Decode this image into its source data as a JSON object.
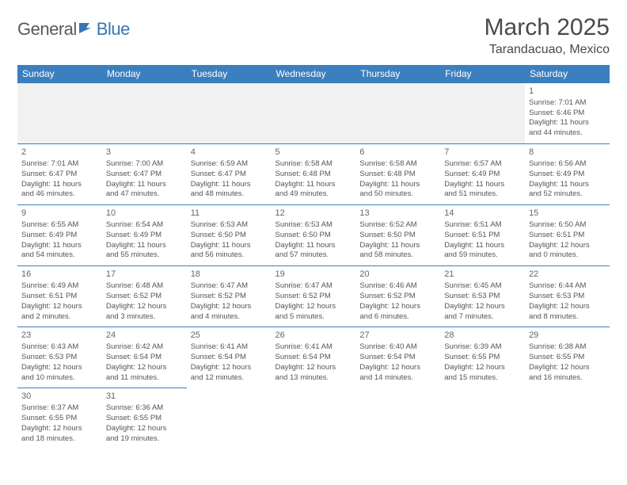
{
  "brand": {
    "part1": "General",
    "part2": "Blue"
  },
  "title": "March 2025",
  "location": "Tarandacuao, Mexico",
  "colors": {
    "header_bg": "#3b7fbf",
    "header_text": "#ffffff",
    "border": "#3b7fbf",
    "empty_bg": "#f1f1f1",
    "text": "#555555",
    "title_text": "#4a4a4a",
    "logo_gray": "#5a5a5a",
    "logo_blue": "#3676b5"
  },
  "weekdays": [
    "Sunday",
    "Monday",
    "Tuesday",
    "Wednesday",
    "Thursday",
    "Friday",
    "Saturday"
  ],
  "weeks": [
    [
      null,
      null,
      null,
      null,
      null,
      null,
      {
        "d": "1",
        "sr": "7:01 AM",
        "ss": "6:46 PM",
        "dl1": "11 hours",
        "dl2": "and 44 minutes."
      }
    ],
    [
      {
        "d": "2",
        "sr": "7:01 AM",
        "ss": "6:47 PM",
        "dl1": "11 hours",
        "dl2": "and 46 minutes."
      },
      {
        "d": "3",
        "sr": "7:00 AM",
        "ss": "6:47 PM",
        "dl1": "11 hours",
        "dl2": "and 47 minutes."
      },
      {
        "d": "4",
        "sr": "6:59 AM",
        "ss": "6:47 PM",
        "dl1": "11 hours",
        "dl2": "and 48 minutes."
      },
      {
        "d": "5",
        "sr": "6:58 AM",
        "ss": "6:48 PM",
        "dl1": "11 hours",
        "dl2": "and 49 minutes."
      },
      {
        "d": "6",
        "sr": "6:58 AM",
        "ss": "6:48 PM",
        "dl1": "11 hours",
        "dl2": "and 50 minutes."
      },
      {
        "d": "7",
        "sr": "6:57 AM",
        "ss": "6:49 PM",
        "dl1": "11 hours",
        "dl2": "and 51 minutes."
      },
      {
        "d": "8",
        "sr": "6:56 AM",
        "ss": "6:49 PM",
        "dl1": "11 hours",
        "dl2": "and 52 minutes."
      }
    ],
    [
      {
        "d": "9",
        "sr": "6:55 AM",
        "ss": "6:49 PM",
        "dl1": "11 hours",
        "dl2": "and 54 minutes."
      },
      {
        "d": "10",
        "sr": "6:54 AM",
        "ss": "6:49 PM",
        "dl1": "11 hours",
        "dl2": "and 55 minutes."
      },
      {
        "d": "11",
        "sr": "6:53 AM",
        "ss": "6:50 PM",
        "dl1": "11 hours",
        "dl2": "and 56 minutes."
      },
      {
        "d": "12",
        "sr": "6:53 AM",
        "ss": "6:50 PM",
        "dl1": "11 hours",
        "dl2": "and 57 minutes."
      },
      {
        "d": "13",
        "sr": "6:52 AM",
        "ss": "6:50 PM",
        "dl1": "11 hours",
        "dl2": "and 58 minutes."
      },
      {
        "d": "14",
        "sr": "6:51 AM",
        "ss": "6:51 PM",
        "dl1": "11 hours",
        "dl2": "and 59 minutes."
      },
      {
        "d": "15",
        "sr": "6:50 AM",
        "ss": "6:51 PM",
        "dl1": "12 hours",
        "dl2": "and 0 minutes."
      }
    ],
    [
      {
        "d": "16",
        "sr": "6:49 AM",
        "ss": "6:51 PM",
        "dl1": "12 hours",
        "dl2": "and 2 minutes."
      },
      {
        "d": "17",
        "sr": "6:48 AM",
        "ss": "6:52 PM",
        "dl1": "12 hours",
        "dl2": "and 3 minutes."
      },
      {
        "d": "18",
        "sr": "6:47 AM",
        "ss": "6:52 PM",
        "dl1": "12 hours",
        "dl2": "and 4 minutes."
      },
      {
        "d": "19",
        "sr": "6:47 AM",
        "ss": "6:52 PM",
        "dl1": "12 hours",
        "dl2": "and 5 minutes."
      },
      {
        "d": "20",
        "sr": "6:46 AM",
        "ss": "6:52 PM",
        "dl1": "12 hours",
        "dl2": "and 6 minutes."
      },
      {
        "d": "21",
        "sr": "6:45 AM",
        "ss": "6:53 PM",
        "dl1": "12 hours",
        "dl2": "and 7 minutes."
      },
      {
        "d": "22",
        "sr": "6:44 AM",
        "ss": "6:53 PM",
        "dl1": "12 hours",
        "dl2": "and 8 minutes."
      }
    ],
    [
      {
        "d": "23",
        "sr": "6:43 AM",
        "ss": "6:53 PM",
        "dl1": "12 hours",
        "dl2": "and 10 minutes."
      },
      {
        "d": "24",
        "sr": "6:42 AM",
        "ss": "6:54 PM",
        "dl1": "12 hours",
        "dl2": "and 11 minutes."
      },
      {
        "d": "25",
        "sr": "6:41 AM",
        "ss": "6:54 PM",
        "dl1": "12 hours",
        "dl2": "and 12 minutes."
      },
      {
        "d": "26",
        "sr": "6:41 AM",
        "ss": "6:54 PM",
        "dl1": "12 hours",
        "dl2": "and 13 minutes."
      },
      {
        "d": "27",
        "sr": "6:40 AM",
        "ss": "6:54 PM",
        "dl1": "12 hours",
        "dl2": "and 14 minutes."
      },
      {
        "d": "28",
        "sr": "6:39 AM",
        "ss": "6:55 PM",
        "dl1": "12 hours",
        "dl2": "and 15 minutes."
      },
      {
        "d": "29",
        "sr": "6:38 AM",
        "ss": "6:55 PM",
        "dl1": "12 hours",
        "dl2": "and 16 minutes."
      }
    ],
    [
      {
        "d": "30",
        "sr": "6:37 AM",
        "ss": "6:55 PM",
        "dl1": "12 hours",
        "dl2": "and 18 minutes."
      },
      {
        "d": "31",
        "sr": "6:36 AM",
        "ss": "6:55 PM",
        "dl1": "12 hours",
        "dl2": "and 19 minutes."
      },
      null,
      null,
      null,
      null,
      null
    ]
  ],
  "labels": {
    "sunrise": "Sunrise: ",
    "sunset": "Sunset: ",
    "daylight": "Daylight: "
  }
}
